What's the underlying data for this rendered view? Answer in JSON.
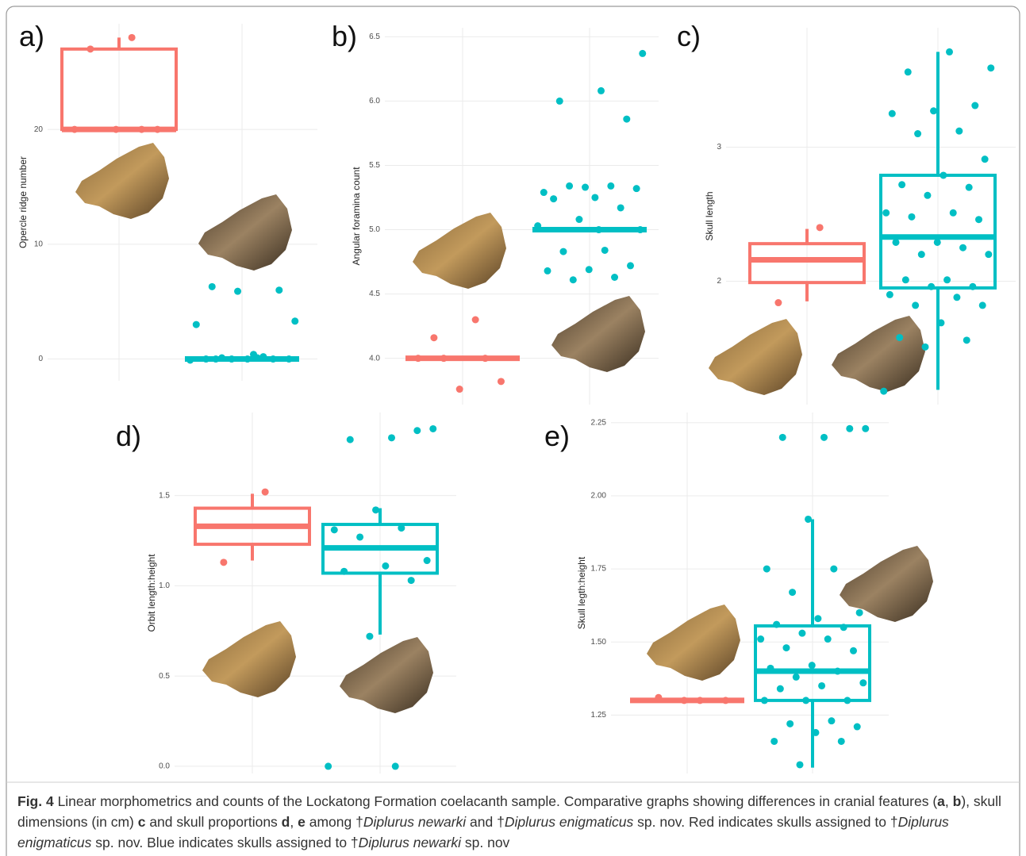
{
  "chart_data": [
    {
      "type": "box",
      "panel_label": "a)",
      "y_label": "Opercle ridge number",
      "ylim": [
        -1.9,
        29.2
      ],
      "yticks": [
        0,
        10,
        20
      ],
      "grid": true,
      "series": [
        {
          "color": "#f8766d",
          "box": {
            "whisker_low": 20,
            "q1": 20,
            "median": 20,
            "q3": 27,
            "whisker_high": 28
          },
          "points": [
            28,
            27,
            20,
            20,
            20,
            20
          ]
        },
        {
          "color": "#00bfc4",
          "box": {
            "whisker_low": 0,
            "q1": 0,
            "median": 0,
            "q3": 0,
            "whisker_high": 0
          },
          "points": [
            3.3,
            0.4,
            6.3,
            6.0,
            5.9,
            3.0,
            0.2,
            0.1,
            0,
            0,
            0,
            0,
            0,
            -0.1,
            0.1,
            0
          ]
        }
      ]
    },
    {
      "type": "box",
      "panel_label": "b)",
      "y_label": "Angular foramina count",
      "ylim": [
        3.64,
        6.57
      ],
      "yticks": [
        {
          "value": 4,
          "label": "4.0"
        },
        4.5,
        {
          "value": 5,
          "label": "5.0"
        },
        5.5,
        {
          "value": 6,
          "label": "6.0"
        },
        6.5
      ],
      "grid": true,
      "series": [
        {
          "color": "#f8766d",
          "box": {
            "whisker_low": 4,
            "q1": 4,
            "median": 4,
            "q3": 4,
            "whisker_high": 4
          },
          "points": [
            4.3,
            4.16,
            3.82,
            3.76,
            4,
            4,
            4
          ]
        },
        {
          "color": "#00bfc4",
          "box": {
            "whisker_low": 5,
            "q1": 5,
            "median": 5,
            "q3": 5,
            "whisker_high": 5
          },
          "points": [
            6.37,
            6.08,
            6.0,
            5.86,
            5.33,
            5.29,
            5.34,
            5.34,
            5.32,
            5.25,
            5.24,
            5.17,
            5.08,
            5.03,
            4.84,
            4.83,
            4.72,
            4.69,
            4.68,
            4.63,
            4.61,
            5,
            5
          ]
        }
      ]
    },
    {
      "type": "box",
      "panel_label": "c)",
      "y_label": "Skull length",
      "ylim": [
        1.08,
        3.89
      ],
      "yticks": [
        2,
        3
      ],
      "grid": true,
      "series": [
        {
          "color": "#f8766d",
          "box": {
            "whisker_low": 1.85,
            "q1": 1.99,
            "median": 2.16,
            "q3": 2.28,
            "whisker_high": 2.39
          },
          "points": [
            2.4,
            1.84
          ]
        },
        {
          "color": "#00bfc4",
          "box": {
            "whisker_low": 1.19,
            "q1": 1.95,
            "median": 2.33,
            "q3": 2.79,
            "whisker_high": 3.71
          },
          "points": [
            3.59,
            3.71,
            3.56,
            3.31,
            3.27,
            3.25,
            3.12,
            3.1,
            2.91,
            2.79,
            2.72,
            2.7,
            2.64,
            2.51,
            2.51,
            2.48,
            2.46,
            2.29,
            2.29,
            2.25,
            2.2,
            2.2,
            2.01,
            2.01,
            1.96,
            1.96,
            1.9,
            1.88,
            1.82,
            1.82,
            1.69,
            1.58,
            1.56,
            1.51,
            1.18
          ]
        }
      ]
    },
    {
      "type": "box",
      "panel_label": "d)",
      "y_label": "Orbit length:height",
      "ylim": [
        -0.04,
        1.96
      ],
      "yticks": [
        {
          "value": 0,
          "label": "0.0"
        },
        0.5,
        {
          "value": 1,
          "label": "1.0"
        },
        1.5
      ],
      "grid": true,
      "series": [
        {
          "color": "#f8766d",
          "box": {
            "whisker_low": 1.14,
            "q1": 1.23,
            "median": 1.33,
            "q3": 1.43,
            "whisker_high": 1.51
          },
          "points": [
            1.52,
            1.13
          ]
        },
        {
          "color": "#00bfc4",
          "box": {
            "whisker_low": 0.73,
            "q1": 1.07,
            "median": 1.21,
            "q3": 1.34,
            "whisker_high": 1.43
          },
          "points": [
            1.87,
            1.82,
            1.81,
            1.86,
            1.42,
            1.31,
            1.32,
            1.27,
            1.14,
            1.11,
            1.08,
            1.03,
            0.72,
            0,
            0
          ]
        }
      ]
    },
    {
      "type": "box",
      "panel_label": "e)",
      "y_label": "Skull legth:height",
      "ylim": [
        1.05,
        2.285
      ],
      "yticks": [
        1.25,
        {
          "value": 1.5,
          "label": "1.50"
        },
        1.75,
        {
          "value": 2,
          "label": "2.00"
        },
        2.25
      ],
      "grid": true,
      "series": [
        {
          "color": "#f8766d",
          "box": {
            "whisker_low": 1.3,
            "q1": 1.3,
            "median": 1.3,
            "q3": 1.3,
            "whisker_high": 1.3
          },
          "points": [
            1.3,
            1.31,
            1.3,
            1.3
          ]
        },
        {
          "color": "#00bfc4",
          "box": {
            "whisker_low": 1.07,
            "q1": 1.3,
            "median": 1.4,
            "q3": 1.555,
            "whisker_high": 1.92
          },
          "points": [
            2.23,
            2.2,
            2.2,
            2.23,
            1.92,
            1.75,
            1.75,
            1.67,
            1.6,
            1.58,
            1.56,
            1.55,
            1.53,
            1.51,
            1.51,
            1.48,
            1.47,
            1.42,
            1.41,
            1.4,
            1.38,
            1.36,
            1.35,
            1.34,
            1.3,
            1.3,
            1.3,
            1.23,
            1.22,
            1.21,
            1.19,
            1.16,
            1.16,
            1.08
          ]
        }
      ]
    }
  ],
  "caption": {
    "segments": [
      {
        "text": "Fig. 4",
        "style": "bold"
      },
      {
        "text": "  Linear morphometrics and counts of the Lockatong Formation coelacanth sample. Comparative graphs showing differences in cranial features (",
        "style": "plain"
      },
      {
        "text": "a",
        "style": "bold"
      },
      {
        "text": ", ",
        "style": "plain"
      },
      {
        "text": "b",
        "style": "bold"
      },
      {
        "text": "), skull dimensions (in cm) ",
        "style": "plain"
      },
      {
        "text": "c",
        "style": "bold"
      },
      {
        "text": " and skull proportions ",
        "style": "plain"
      },
      {
        "text": "d",
        "style": "bold"
      },
      {
        "text": ", ",
        "style": "plain"
      },
      {
        "text": "e",
        "style": "bold"
      },
      {
        "text": " among †",
        "style": "plain"
      },
      {
        "text": "Diplurus newarki",
        "style": "italic"
      },
      {
        "text": " and †",
        "style": "plain"
      },
      {
        "text": "Diplurus enigmaticus",
        "style": "italic"
      },
      {
        "text": " sp. nov. Red indicates skulls assigned to †",
        "style": "plain"
      },
      {
        "text": "Diplurus enigmaticus",
        "style": "italic"
      },
      {
        "text": " sp. nov. Blue indicates skulls assigned to †",
        "style": "plain"
      },
      {
        "text": "Diplurus newarki",
        "style": "italic"
      },
      {
        "text": " sp. nov",
        "style": "plain"
      }
    ]
  }
}
